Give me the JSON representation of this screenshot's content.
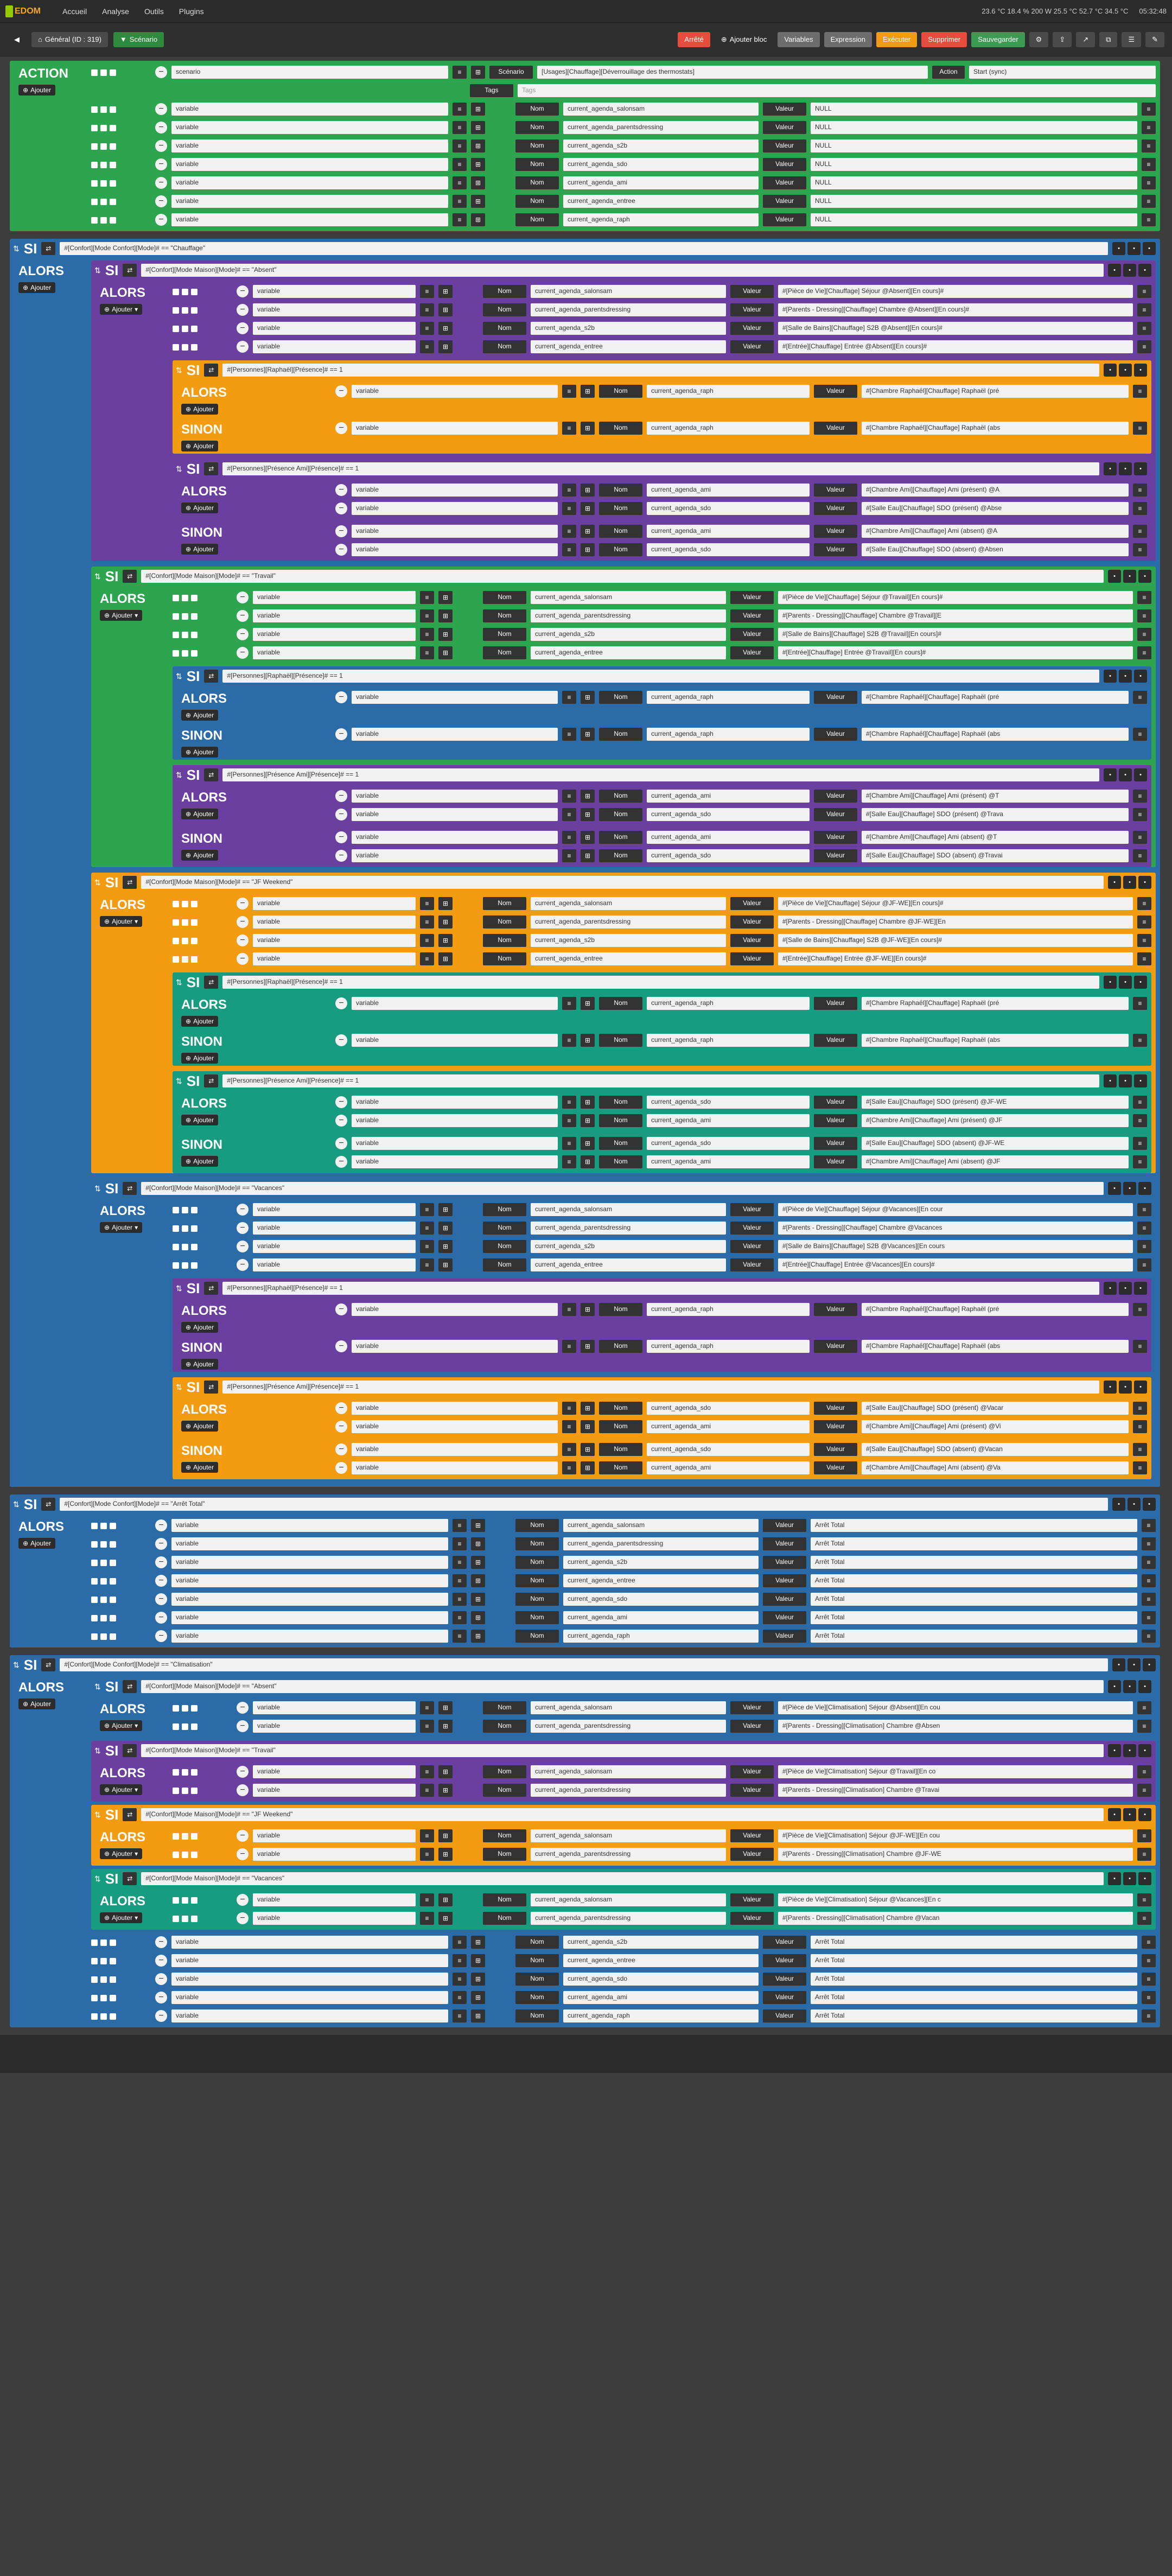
{
  "topbar": {
    "brand": "EDOM",
    "menus": [
      "Accueil",
      "Analyse",
      "Outils",
      "Plugins"
    ],
    "status": "23.6 °C  18.4 %  200 W  25.5 °C  52.7 °C  34.5 °C",
    "time": "05:32:48"
  },
  "toolbar": {
    "tab_general": "Général (ID : 319)",
    "tab_scenario": "Scénario",
    "btn_arret": "Arrêté",
    "btn_ajouter_bloc": "Ajouter bloc",
    "btn_variables": "Variables",
    "btn_expression": "Expression",
    "btn_executer": "Exécuter",
    "btn_supprimer": "Supprimer",
    "btn_sauvegarder": "Sauvegarder"
  },
  "labels": {
    "si": "SI",
    "alors": "ALORS",
    "sinon": "SINON",
    "action": "ACTION",
    "ajouter": "Ajouter",
    "nom": "Nom",
    "valeur": "Valeur",
    "scenario": "Scénario",
    "action_lbl": "Action",
    "tags": "Tags",
    "variable": "variable"
  },
  "action_block": {
    "scenario_name": "scenario",
    "scenario_value": "[Usages][Chauffage][Déverrouillage des thermostats]",
    "action_value": "Start (sync)",
    "tags_placeholder": "Tags",
    "rows": [
      {
        "name": "current_agenda_salonsam",
        "value": "NULL"
      },
      {
        "name": "current_agenda_parentsdressing",
        "value": "NULL"
      },
      {
        "name": "current_agenda_s2b",
        "value": "NULL"
      },
      {
        "name": "current_agenda_sdo",
        "value": "NULL"
      },
      {
        "name": "current_agenda_ami",
        "value": "NULL"
      },
      {
        "name": "current_agenda_entree",
        "value": "NULL"
      },
      {
        "name": "current_agenda_raph",
        "value": "NULL"
      }
    ]
  },
  "chauffage": {
    "cond": "#[Confort][Mode Confort][Mode]# == \"Chauffage\"",
    "modes": [
      {
        "cond": "#[Confort][Mode Maison][Mode]# == \"Absent\"",
        "color": "purple",
        "rows": [
          {
            "name": "current_agenda_salonsam",
            "value": "#[Pièce de Vie][Chauffage] Séjour @Absent][En cours]#"
          },
          {
            "name": "current_agenda_parentsdressing",
            "value": "#[Parents - Dressing][Chauffage] Chambre @Absent][En cours]#"
          },
          {
            "name": "current_agenda_s2b",
            "value": "#[Salle de Bains][Chauffage] S2B @Absent][En cours]#"
          },
          {
            "name": "current_agenda_entree",
            "value": "#[Entrée][Chauffage] Entrée @Absent][En cours]#"
          }
        ],
        "raph": {
          "cond": "#[Personnes][Raphaël][Présence]# == 1",
          "color": "orange",
          "alors": "#[Chambre Raphaël][Chauffage] Raphaël (pré",
          "sinon": "#[Chambre Raphaël][Chauffage] Raphaël (abs"
        },
        "ami": {
          "cond": "#[Personnes][Présence Ami][Présence]# == 1",
          "color": "purple",
          "alors": [
            {
              "name": "current_agenda_ami",
              "value": "#[Chambre Ami][Chauffage] Ami (présent) @A"
            },
            {
              "name": "current_agenda_sdo",
              "value": "#[Salle Eau][Chauffage] SDO (présent) @Abse"
            }
          ],
          "sinon": [
            {
              "name": "current_agenda_ami",
              "value": "#[Chambre Ami][Chauffage] Ami (absent) @A"
            },
            {
              "name": "current_agenda_sdo",
              "value": "#[Salle Eau][Chauffage] SDO (absent) @Absen"
            }
          ]
        }
      },
      {
        "cond": "#[Confort][Mode Maison][Mode]# == \"Travail\"",
        "color": "green",
        "rows": [
          {
            "name": "current_agenda_salonsam",
            "value": "#[Pièce de Vie][Chauffage] Séjour @Travail][En cours]#"
          },
          {
            "name": "current_agenda_parentsdressing",
            "value": "#[Parents - Dressing][Chauffage] Chambre @Travail][E"
          },
          {
            "name": "current_agenda_s2b",
            "value": "#[Salle de Bains][Chauffage] S2B @Travail][En cours]#"
          },
          {
            "name": "current_agenda_entree",
            "value": "#[Entrée][Chauffage] Entrée @Travail][En cours]#"
          }
        ],
        "raph": {
          "cond": "#[Personnes][Raphaël][Présence]# == 1",
          "color": "blue",
          "alors": "#[Chambre Raphaël][Chauffage] Raphaël (pré",
          "sinon": "#[Chambre Raphaël][Chauffage] Raphaël (abs"
        },
        "ami": {
          "cond": "#[Personnes][Présence Ami][Présence]# == 1",
          "color": "purple",
          "alors": [
            {
              "name": "current_agenda_ami",
              "value": "#[Chambre Ami][Chauffage] Ami (présent) @T"
            },
            {
              "name": "current_agenda_sdo",
              "value": "#[Salle Eau][Chauffage] SDO (présent) @Trava"
            }
          ],
          "sinon": [
            {
              "name": "current_agenda_ami",
              "value": "#[Chambre Ami][Chauffage] Ami (absent) @T"
            },
            {
              "name": "current_agenda_sdo",
              "value": "#[Salle Eau][Chauffage] SDO (absent) @Travai"
            }
          ]
        }
      },
      {
        "cond": "#[Confort][Mode Maison][Mode]# == \"JF Weekend\"",
        "color": "orange",
        "rows": [
          {
            "name": "current_agenda_salonsam",
            "value": "#[Pièce de Vie][Chauffage] Séjour @JF-WE][En cours]#"
          },
          {
            "name": "current_agenda_parentsdressing",
            "value": "#[Parents - Dressing][Chauffage] Chambre @JF-WE][En"
          },
          {
            "name": "current_agenda_s2b",
            "value": "#[Salle de Bains][Chauffage] S2B @JF-WE][En cours]#"
          },
          {
            "name": "current_agenda_entree",
            "value": "#[Entrée][Chauffage] Entrée @JF-WE][En cours]#"
          }
        ],
        "raph": {
          "cond": "#[Personnes][Raphaël][Présence]# == 1",
          "color": "teal",
          "alors": "#[Chambre Raphaël][Chauffage] Raphaël (pré",
          "sinon": "#[Chambre Raphaël][Chauffage] Raphaël (abs"
        },
        "ami": {
          "cond": "#[Personnes][Présence Ami][Présence]# == 1",
          "color": "teal",
          "alors": [
            {
              "name": "current_agenda_sdo",
              "value": "#[Salle Eau][Chauffage] SDO (présent) @JF-WE"
            },
            {
              "name": "current_agenda_ami",
              "value": "#[Chambre Ami][Chauffage] Ami (présent) @JF"
            }
          ],
          "sinon": [
            {
              "name": "current_agenda_sdo",
              "value": "#[Salle Eau][Chauffage] SDO (absent) @JF-WE"
            },
            {
              "name": "current_agenda_ami",
              "value": "#[Chambre Ami][Chauffage] Ami (absent) @JF"
            }
          ]
        }
      },
      {
        "cond": "#[Confort][Mode Maison][Mode]# == \"Vacances\"",
        "color": "blue",
        "rows": [
          {
            "name": "current_agenda_salonsam",
            "value": "#[Pièce de Vie][Chauffage] Séjour @Vacances][En cour"
          },
          {
            "name": "current_agenda_parentsdressing",
            "value": "#[Parents - Dressing][Chauffage] Chambre @Vacances"
          },
          {
            "name": "current_agenda_s2b",
            "value": "#[Salle de Bains][Chauffage] S2B @Vacances][En cours"
          },
          {
            "name": "current_agenda_entree",
            "value": "#[Entrée][Chauffage] Entrée @Vacances][En cours]#"
          }
        ],
        "raph": {
          "cond": "#[Personnes][Raphaël][Présence]# == 1",
          "color": "purple",
          "alors": "#[Chambre Raphaël][Chauffage] Raphaël (pré",
          "sinon": "#[Chambre Raphaël][Chauffage] Raphaël (abs"
        },
        "ami": {
          "cond": "#[Personnes][Présence Ami][Présence]# == 1",
          "color": "orange",
          "alors": [
            {
              "name": "current_agenda_sdo",
              "value": "#[Salle Eau][Chauffage] SDO (présent) @Vacar"
            },
            {
              "name": "current_agenda_ami",
              "value": "#[Chambre Ami][Chauffage] Ami (présent) @Vi"
            }
          ],
          "sinon": [
            {
              "name": "current_agenda_sdo",
              "value": "#[Salle Eau][Chauffage] SDO (absent) @Vacan"
            },
            {
              "name": "current_agenda_ami",
              "value": "#[Chambre Ami][Chauffage] Ami (absent) @Va"
            }
          ]
        }
      }
    ]
  },
  "arret": {
    "cond": "#[Confort][Mode Confort][Mode]# == \"Arrêt Total\"",
    "rows": [
      {
        "name": "current_agenda_salonsam",
        "value": "Arrêt Total"
      },
      {
        "name": "current_agenda_parentsdressing",
        "value": "Arrêt Total"
      },
      {
        "name": "current_agenda_s2b",
        "value": "Arrêt Total"
      },
      {
        "name": "current_agenda_entree",
        "value": "Arrêt Total"
      },
      {
        "name": "current_agenda_sdo",
        "value": "Arrêt Total"
      },
      {
        "name": "current_agenda_ami",
        "value": "Arrêt Total"
      },
      {
        "name": "current_agenda_raph",
        "value": "Arrêt Total"
      }
    ]
  },
  "clim": {
    "cond": "#[Confort][Mode Confort][Mode]# == \"Climatisation\"",
    "modes": [
      {
        "cond": "#[Confort][Mode Maison][Mode]# == \"Absent\"",
        "color": "blue",
        "rows": [
          {
            "name": "current_agenda_salonsam",
            "value": "#[Pièce de Vie][Climatisation] Séjour @Absent][En cou"
          },
          {
            "name": "current_agenda_parentsdressing",
            "value": "#[Parents - Dressing][Climatisation] Chambre @Absen"
          }
        ]
      },
      {
        "cond": "#[Confort][Mode Maison][Mode]# == \"Travail\"",
        "color": "purple",
        "rows": [
          {
            "name": "current_agenda_salonsam",
            "value": "#[Pièce de Vie][Climatisation] Séjour @Travail][En co"
          },
          {
            "name": "current_agenda_parentsdressing",
            "value": "#[Parents - Dressing][Climatisation] Chambre @Travai"
          }
        ]
      },
      {
        "cond": "#[Confort][Mode Maison][Mode]# == \"JF Weekend\"",
        "color": "orange",
        "rows": [
          {
            "name": "current_agenda_salonsam",
            "value": "#[Pièce de Vie][Climatisation] Séjour @JF-WE][En cou"
          },
          {
            "name": "current_agenda_parentsdressing",
            "value": "#[Parents - Dressing][Climatisation] Chambre @JF-WE"
          }
        ]
      },
      {
        "cond": "#[Confort][Mode Maison][Mode]# == \"Vacances\"",
        "color": "teal",
        "rows": [
          {
            "name": "current_agenda_salonsam",
            "value": "#[Pièce de Vie][Climatisation] Séjour @Vacances][En c"
          },
          {
            "name": "current_agenda_parentsdressing",
            "value": "#[Parents - Dressing][Climatisation] Chambre @Vacan"
          }
        ]
      }
    ],
    "rows": [
      {
        "name": "current_agenda_s2b",
        "value": "Arrêt Total"
      },
      {
        "name": "current_agenda_entree",
        "value": "Arrêt Total"
      },
      {
        "name": "current_agenda_sdo",
        "value": "Arrêt Total"
      },
      {
        "name": "current_agenda_ami",
        "value": "Arrêt Total"
      },
      {
        "name": "current_agenda_raph",
        "value": "Arrêt Total"
      }
    ]
  }
}
